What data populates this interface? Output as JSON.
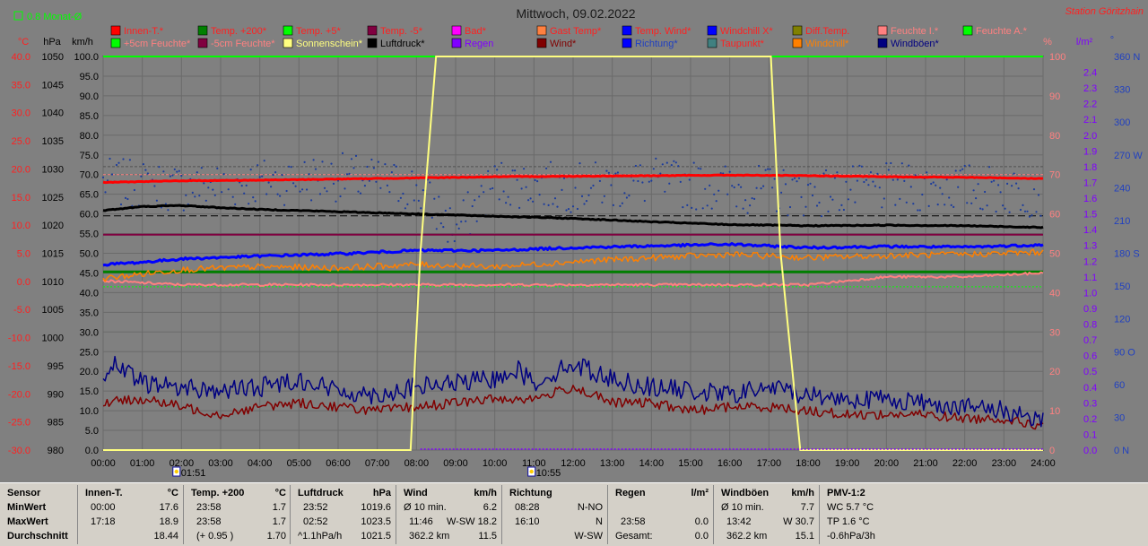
{
  "title": "Mittwoch, 09.02.2022",
  "station": "Station Göritzhain",
  "monat_label": "0.8 Monat-Ø",
  "axis_units": {
    "temp": "°C",
    "press": "hPa",
    "speed": "km/h",
    "pct": "%",
    "rain": "l/m²",
    "dir": "°"
  },
  "legend": [
    {
      "label": "Innen-T.*",
      "color": "#ff0000",
      "text_color": "#ff2020"
    },
    {
      "label": "Temp. +200*",
      "color": "#008000",
      "text_color": "#ff2020"
    },
    {
      "label": "Temp. +5*",
      "color": "#00ff00",
      "text_color": "#ff2020"
    },
    {
      "label": "Temp. -5*",
      "color": "#800040",
      "text_color": "#ff2020"
    },
    {
      "label": "Bad*",
      "color": "#ff00ff",
      "text_color": "#ff2020"
    },
    {
      "label": "Gast Temp*",
      "color": "#ff8040",
      "text_color": "#ff2020"
    },
    {
      "label": "Temp. Wind*",
      "color": "#0000ff",
      "text_color": "#ff2020"
    },
    {
      "label": "Windchill X*",
      "color": "#0000ff",
      "text_color": "#ff2020"
    },
    {
      "label": "Diff.Temp.",
      "color": "#808000",
      "text_color": "#ff2020"
    },
    {
      "label": "Feuchte I.*",
      "color": "#ff8080",
      "text_color": "#ff8080"
    },
    {
      "label": "Feuchte A.*",
      "color": "#00ff00",
      "text_color": "#ff8080"
    },
    {
      "label": "+5cm Feuchte*",
      "color": "#00ff00",
      "text_color": "#ff8080"
    },
    {
      "label": "-5cm Feuchte*",
      "color": "#800040",
      "text_color": "#ff8080"
    },
    {
      "label": "Sonnenschein*",
      "color": "#ffff80",
      "text_color": "#ffff80"
    },
    {
      "label": "Luftdruck*",
      "color": "#000000",
      "text_color": "#000000"
    },
    {
      "label": "Regen",
      "color": "#8000ff",
      "text_color": "#8000ff"
    },
    {
      "label": "Wind*",
      "color": "#800000",
      "text_color": "#800000"
    },
    {
      "label": "Richtung*",
      "color": "#0000ff",
      "text_color": "#2040c0"
    },
    {
      "label": "Taupunkt*",
      "color": "#408080",
      "text_color": "#ff2020"
    },
    {
      "label": "Windchill*",
      "color": "#ff8000",
      "text_color": "#ff8000"
    },
    {
      "label": "Windböen*",
      "color": "#000080",
      "text_color": "#000080"
    }
  ],
  "markers": [
    {
      "time": "01:51"
    },
    {
      "time": "10:55"
    }
  ],
  "chart_data": {
    "type": "line",
    "x_ticks": [
      "00:00",
      "01:00",
      "02:00",
      "03:00",
      "04:00",
      "05:00",
      "06:00",
      "07:00",
      "08:00",
      "09:00",
      "10:00",
      "11:00",
      "12:00",
      "13:00",
      "14:00",
      "15:00",
      "16:00",
      "17:00",
      "18:00",
      "19:00",
      "20:00",
      "21:00",
      "22:00",
      "23:00",
      "24:00"
    ],
    "axes": {
      "temp_C": {
        "ticks": [
          "40.0",
          "35.0",
          "30.0",
          "25.0",
          "20.0",
          "15.0",
          "10.0",
          "5.0",
          "0.0",
          "-5.0",
          "-10.0",
          "-15.0",
          "-20.0",
          "-25.0",
          "-30.0"
        ],
        "ylim": [
          -30,
          40
        ]
      },
      "pressure_hPa": {
        "ticks": [
          "1050",
          "1045",
          "1040",
          "1035",
          "1030",
          "1025",
          "1020",
          "1015",
          "1010",
          "1005",
          "1000",
          "995",
          "990",
          "985",
          "980"
        ],
        "ylim": [
          980,
          1050
        ]
      },
      "speed_kmh": {
        "ticks": [
          "100.0",
          "95.0",
          "90.0",
          "85.0",
          "80.0",
          "75.0",
          "70.0",
          "65.0",
          "60.0",
          "55.0",
          "50.0",
          "45.0",
          "40.0",
          "35.0",
          "30.0",
          "25.0",
          "20.0",
          "15.0",
          "10.0",
          "5.0",
          "0.0"
        ],
        "ylim": [
          0,
          100
        ]
      },
      "percent": {
        "ticks": [
          "100",
          "90",
          "80",
          "70",
          "60",
          "50",
          "40",
          "30",
          "20",
          "10",
          "0"
        ],
        "ylim": [
          0,
          100
        ]
      },
      "rain_lm2": {
        "ticks": [
          "2.4",
          "2.3",
          "2.2",
          "2.1",
          "2.0",
          "1.9",
          "1.8",
          "1.7",
          "1.6",
          "1.5",
          "1.4",
          "1.3",
          "1.2",
          "1.1",
          "1.0",
          "0.9",
          "0.8",
          "0.7",
          "0.6",
          "0.5",
          "0.4",
          "0.3",
          "0.2",
          "0.1",
          "0.0"
        ],
        "ylim": [
          0,
          2.5
        ]
      },
      "direction_deg": {
        "ticks": [
          "360 N",
          "330",
          "300",
          "270 W",
          "240",
          "210",
          "180 S",
          "150",
          "120",
          "90 O",
          "60",
          "30",
          "0 N"
        ],
        "ylim": [
          0,
          360
        ]
      }
    },
    "series": [
      {
        "name": "Innen-T.*",
        "axis": "temp",
        "color": "#ff0000",
        "x": [
          0,
          2,
          4,
          6,
          8,
          10,
          12,
          14,
          16,
          18,
          20,
          22,
          24
        ],
        "y": [
          17.6,
          17.9,
          18.0,
          18.2,
          18.4,
          18.6,
          18.7,
          18.8,
          18.9,
          18.8,
          18.6,
          18.5,
          18.3
        ]
      },
      {
        "name": "Luftdruck*",
        "axis": "press",
        "color": "#000000",
        "x": [
          0,
          1,
          2,
          3,
          4,
          6,
          8,
          10,
          12,
          14,
          16,
          18,
          20,
          22,
          24
        ],
        "y": [
          1022.6,
          1023.3,
          1023.5,
          1023.1,
          1022.8,
          1022.4,
          1022.0,
          1021.6,
          1021.2,
          1020.6,
          1020.1,
          1019.9,
          1020.0,
          1019.9,
          1019.6
        ]
      },
      {
        "name": "Temp. Wind*",
        "axis": "temp",
        "color": "#0000ff",
        "x": [
          0,
          1,
          2,
          4,
          6,
          8,
          10,
          12,
          14,
          16,
          18,
          20,
          22,
          24
        ],
        "y": [
          3.0,
          3.4,
          4.0,
          4.5,
          4.9,
          5.5,
          5.5,
          6.0,
          6.3,
          6.6,
          6.0,
          6.2,
          6.1,
          6.5
        ]
      },
      {
        "name": "Windchill*",
        "axis": "temp",
        "color": "#ff8000",
        "x": [
          0,
          1,
          2,
          4,
          6,
          8,
          10,
          12,
          14,
          16,
          18,
          20,
          22,
          24
        ],
        "y": [
          0.5,
          1.3,
          2.1,
          2.6,
          2.4,
          3.0,
          2.6,
          3.5,
          4.2,
          4.8,
          4.2,
          4.6,
          4.8,
          5.2
        ]
      },
      {
        "name": "Feuchte I.*",
        "axis": "pct",
        "color": "#ff8080",
        "x": [
          0,
          2,
          4,
          6,
          8,
          10,
          12,
          14,
          16,
          17,
          18,
          20,
          22,
          24
        ],
        "y": [
          43,
          42,
          42,
          42,
          42,
          42,
          42,
          42,
          42,
          42,
          42,
          44,
          44,
          45
        ]
      },
      {
        "name": "Temp. +200*",
        "axis": "temp",
        "color": "#008000",
        "x": [
          0,
          24
        ],
        "y": [
          1.7,
          1.7
        ]
      },
      {
        "name": "Temp. -5*",
        "axis": "temp",
        "color": "#800040",
        "x": [
          0,
          24
        ],
        "y": [
          8.3,
          8.3
        ]
      },
      {
        "name": "Sonnenschein*",
        "axis": "pct",
        "color": "#ffff80",
        "x": [
          0,
          7.85,
          8.1,
          8.5,
          9,
          16,
          17.05,
          17.3,
          17.8,
          24
        ],
        "y": [
          0,
          0,
          50,
          100,
          100,
          100,
          100,
          50,
          0,
          0
        ]
      },
      {
        "name": "Windböen*",
        "axis": "speed",
        "color": "#000080",
        "x": [
          0,
          0.2,
          1,
          2,
          3,
          4,
          5,
          6,
          7,
          8,
          9,
          10,
          10.5,
          11,
          12,
          13,
          14,
          15,
          16,
          17,
          18,
          19,
          20,
          21,
          22,
          23,
          24
        ],
        "y": [
          16,
          22,
          17,
          16,
          15,
          16,
          18,
          15,
          14,
          16,
          17,
          18,
          21,
          17,
          22,
          18,
          16,
          15,
          14,
          16,
          14,
          13,
          13,
          12,
          11,
          10,
          8
        ]
      },
      {
        "name": "Wind*",
        "axis": "speed",
        "color": "#800000",
        "x": [
          0,
          1,
          2,
          3,
          4,
          5,
          6,
          7,
          8,
          9,
          10,
          11,
          12,
          13,
          14,
          15,
          16,
          17,
          18,
          19,
          20,
          21,
          22,
          23,
          24
        ],
        "y": [
          12,
          13,
          11,
          9,
          11,
          12,
          11,
          10,
          11,
          12,
          13,
          13,
          16,
          12,
          12,
          10,
          11,
          11,
          10,
          9,
          9,
          9,
          8,
          8,
          6
        ]
      },
      {
        "name": "Richtung*",
        "axis": "dir",
        "color": "#0000ff",
        "x": [
          0,
          2,
          4,
          6,
          8,
          9,
          10,
          12,
          14,
          16,
          18,
          20,
          22,
          24
        ],
        "y": [
          245,
          240,
          245,
          250,
          240,
          200,
          245,
          240,
          245,
          240,
          235,
          240,
          240,
          235
        ]
      }
    ]
  },
  "stats": {
    "row_labels": [
      "Sensor",
      "MinWert",
      "MaxWert",
      "Durchschnitt"
    ],
    "innen": {
      "title": "Innen-T.",
      "unit": "°C",
      "min_time": "00:00",
      "min": "17.6",
      "max_time": "17:18",
      "max": "18.9",
      "avg": "18.44"
    },
    "temp200": {
      "title": "Temp. +200",
      "unit": "°C",
      "min_time": "23:58",
      "min": "1.7",
      "max_time": "23:58",
      "max": "1.7",
      "avg_extra": "(+ 0.95 )",
      "avg": "1.70"
    },
    "druck": {
      "title": "Luftdruck",
      "unit": "hPa",
      "min_time": "23:52",
      "min": "1019.6",
      "max_time": "02:52",
      "max": "1023.5",
      "avg_extra": "^1.1hPa/h",
      "avg": "1021.5"
    },
    "wind": {
      "title": "Wind",
      "unit": "km/h",
      "r1a": "Ø 10 min.",
      "r1b": "6.2",
      "r2a": "11:46",
      "r2b": "W-SW 18.2",
      "r3a": "362.2 km",
      "r3b": "11.5"
    },
    "richtung": {
      "title": "Richtung",
      "r1a": "08:28",
      "r1b": "N-NO",
      "r2a": "16:10",
      "r2b": "N",
      "r3b": "W-SW"
    },
    "regen": {
      "title": "Regen",
      "unit": "l/m²",
      "r2a": "23:58",
      "r2b": "0.0",
      "r3a": "Gesamt:",
      "r3b": "0.0"
    },
    "boeen": {
      "title": "Windböen",
      "unit": "km/h",
      "r1a": "Ø 10 min.",
      "r1b": "7.7",
      "r2a": "13:42",
      "r2b": "W 30.7",
      "r3a": "362.2 km",
      "r3b": "15.1"
    },
    "pmv": {
      "title": "PMV-1:2",
      "r1": "WC 5.7 °C",
      "r2": "TP 1.6 °C",
      "r3": "-0.6hPa/3h"
    }
  }
}
